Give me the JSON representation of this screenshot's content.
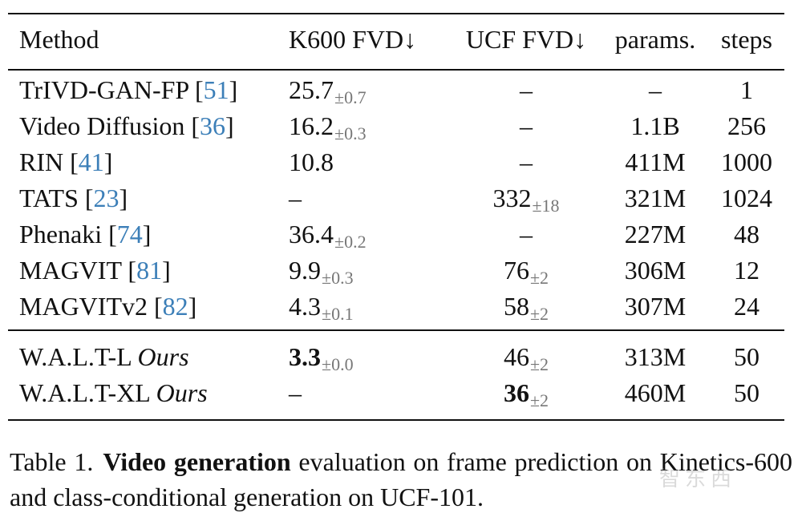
{
  "table": {
    "headers": {
      "method": "Method",
      "k600": "K600 FVD↓",
      "ucf": "UCF FVD↓",
      "params": "params.",
      "steps": "steps"
    },
    "rows": [
      {
        "name": "TrIVD-GAN-FP ",
        "ref": "51",
        "ours": "",
        "k600": "25.7",
        "k600_pm": "±0.7",
        "ucf": "–",
        "ucf_pm": "",
        "params": "–",
        "steps": "1"
      },
      {
        "name": "Video Diffusion ",
        "ref": "36",
        "ours": "",
        "k600": "16.2",
        "k600_pm": "±0.3",
        "ucf": "–",
        "ucf_pm": "",
        "params": "1.1B",
        "steps": "256"
      },
      {
        "name": "RIN ",
        "ref": "41",
        "ours": "",
        "k600": "10.8",
        "k600_pm": "",
        "ucf": "–",
        "ucf_pm": "",
        "params": "411M",
        "steps": "1000"
      },
      {
        "name": "TATS ",
        "ref": "23",
        "ours": "",
        "k600": "–",
        "k600_pm": "",
        "ucf": "332",
        "ucf_pm": "±18",
        "params": "321M",
        "steps": "1024"
      },
      {
        "name": "Phenaki ",
        "ref": "74",
        "ours": "",
        "k600": "36.4",
        "k600_pm": "±0.2",
        "ucf": "–",
        "ucf_pm": "",
        "params": "227M",
        "steps": "48"
      },
      {
        "name": "MAGVIT ",
        "ref": "81",
        "ours": "",
        "k600": "9.9",
        "k600_pm": "±0.3",
        "ucf": "76",
        "ucf_pm": "±2",
        "params": "306M",
        "steps": "12"
      },
      {
        "name": "MAGVITv2 ",
        "ref": "82",
        "ours": "",
        "k600": "4.3",
        "k600_pm": "±0.1",
        "ucf": "58",
        "ucf_pm": "±2",
        "params": "307M",
        "steps": "24"
      },
      {
        "name": "W.A.L.T-L ",
        "ref": "",
        "ours": "Ours",
        "k600": "3.3",
        "k600_pm": "±0.0",
        "ucf": "46",
        "ucf_pm": "±2",
        "params": "313M",
        "steps": "50"
      },
      {
        "name": "W.A.L.T-XL ",
        "ref": "",
        "ours": "Ours",
        "k600": "–",
        "k600_pm": "",
        "ucf": "36",
        "ucf_pm": "±2",
        "params": "460M",
        "steps": "50"
      }
    ]
  },
  "caption": {
    "label": "Table 1.",
    "bold": "Video generation",
    "text": " evaluation on frame prediction on Kinetics-600 and class-conditional generation on UCF-101."
  },
  "watermark": "智东西"
}
